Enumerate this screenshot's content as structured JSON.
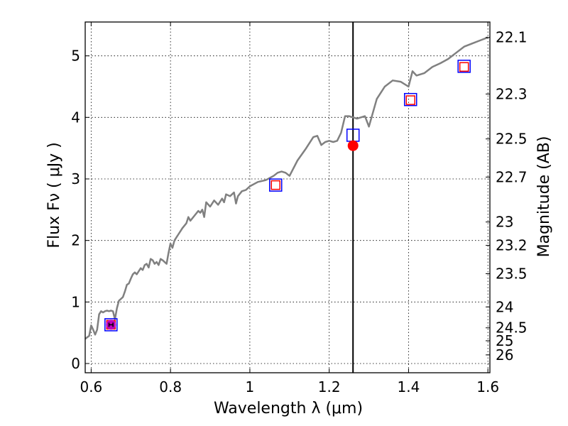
{
  "chart_data": {
    "type": "line",
    "xlabel": "Wavelength  λ (μm)",
    "ylabel": "Flux  Fν  ( μJy )",
    "ylabel_right": "Magnitude (AB)",
    "xlim": [
      0.585,
      1.605
    ],
    "ylim": [
      -0.15,
      5.55
    ],
    "grid": true,
    "x_ticks": [
      0.6,
      0.8,
      1.0,
      1.2,
      1.4,
      1.6
    ],
    "x_tick_labels": [
      "0.6",
      "0.8",
      "1",
      "1.2",
      "1.4",
      "1.6"
    ],
    "y_ticks": [
      0,
      1,
      2,
      3,
      4,
      5
    ],
    "y_tick_labels": [
      "0",
      "1",
      "2",
      "3",
      "4",
      "5"
    ],
    "right_ticks": [
      {
        "label": "22.1",
        "flux": 5.3
      },
      {
        "label": "22.3",
        "flux": 4.38
      },
      {
        "label": "22.5",
        "flux": 3.65
      },
      {
        "label": "22.7",
        "flux": 3.03
      },
      {
        "label": "23",
        "flux": 2.3
      },
      {
        "label": "23.2",
        "flux": 1.92
      },
      {
        "label": "23.5",
        "flux": 1.46
      },
      {
        "label": "24",
        "flux": 0.92
      },
      {
        "label": "24.5",
        "flux": 0.58
      },
      {
        "label": "25",
        "flux": 0.37
      },
      {
        "label": "26",
        "flux": 0.14
      }
    ],
    "vertical_line_x": 1.26,
    "series": [
      {
        "type": "line",
        "color": "#808080",
        "x": [
          0.585,
          0.595,
          0.6,
          0.605,
          0.61,
          0.615,
          0.62,
          0.625,
          0.63,
          0.635,
          0.64,
          0.645,
          0.65,
          0.655,
          0.66,
          0.665,
          0.67,
          0.675,
          0.68,
          0.685,
          0.69,
          0.695,
          0.7,
          0.705,
          0.71,
          0.715,
          0.72,
          0.725,
          0.73,
          0.735,
          0.74,
          0.745,
          0.75,
          0.755,
          0.76,
          0.765,
          0.77,
          0.775,
          0.78,
          0.79,
          0.795,
          0.8,
          0.805,
          0.81,
          0.815,
          0.82,
          0.83,
          0.84,
          0.845,
          0.85,
          0.86,
          0.87,
          0.875,
          0.88,
          0.885,
          0.89,
          0.9,
          0.91,
          0.92,
          0.93,
          0.935,
          0.94,
          0.95,
          0.96,
          0.965,
          0.97,
          0.98,
          0.99,
          1.0,
          1.02,
          1.04,
          1.06,
          1.07,
          1.08,
          1.09,
          1.1,
          1.12,
          1.14,
          1.16,
          1.17,
          1.18,
          1.19,
          1.2,
          1.21,
          1.22,
          1.23,
          1.24,
          1.25,
          1.27,
          1.28,
          1.29,
          1.3,
          1.32,
          1.34,
          1.36,
          1.38,
          1.4,
          1.41,
          1.42,
          1.44,
          1.46,
          1.48,
          1.5,
          1.52,
          1.54,
          1.56,
          1.58,
          1.6
        ],
        "y": [
          0.4,
          0.45,
          0.62,
          0.55,
          0.47,
          0.55,
          0.8,
          0.85,
          0.83,
          0.85,
          0.86,
          0.85,
          0.86,
          0.85,
          0.72,
          0.9,
          1.02,
          1.05,
          1.08,
          1.17,
          1.28,
          1.3,
          1.38,
          1.45,
          1.48,
          1.45,
          1.5,
          1.55,
          1.52,
          1.6,
          1.62,
          1.56,
          1.7,
          1.68,
          1.62,
          1.65,
          1.6,
          1.7,
          1.68,
          1.62,
          1.8,
          1.95,
          1.88,
          2.0,
          2.05,
          2.1,
          2.2,
          2.28,
          2.38,
          2.32,
          2.4,
          2.48,
          2.45,
          2.5,
          2.38,
          2.62,
          2.55,
          2.65,
          2.58,
          2.68,
          2.62,
          2.75,
          2.72,
          2.78,
          2.6,
          2.72,
          2.8,
          2.82,
          2.88,
          2.95,
          2.98,
          3.05,
          3.1,
          3.12,
          3.1,
          3.05,
          3.3,
          3.48,
          3.68,
          3.7,
          3.55,
          3.6,
          3.62,
          3.6,
          3.62,
          3.75,
          4.02,
          4.02,
          3.98,
          4.0,
          4.02,
          3.85,
          4.3,
          4.5,
          4.6,
          4.58,
          4.5,
          4.75,
          4.68,
          4.72,
          4.82,
          4.88,
          4.95,
          5.05,
          5.15,
          5.2,
          5.25,
          5.3
        ]
      },
      {
        "type": "scatter",
        "marker": "square",
        "edge_color": "#0000ff",
        "x": [
          0.65,
          1.065,
          1.26,
          1.405,
          1.54
        ],
        "y": [
          0.63,
          2.9,
          3.71,
          4.29,
          4.83
        ]
      },
      {
        "type": "scatter",
        "marker": "square",
        "edge_color": "#ff0000",
        "x": [
          0.65,
          1.065,
          1.405,
          1.54
        ],
        "y": [
          0.63,
          2.9,
          4.28,
          4.82
        ]
      },
      {
        "type": "scatter",
        "marker": "circle",
        "color": "#ff0000",
        "x": [
          1.26
        ],
        "y": [
          3.54
        ]
      },
      {
        "type": "errorbar",
        "marker": "circle",
        "color": "#bf00bf",
        "x": [
          0.65
        ],
        "y": [
          0.63
        ],
        "xerr": 0.005
      }
    ]
  }
}
